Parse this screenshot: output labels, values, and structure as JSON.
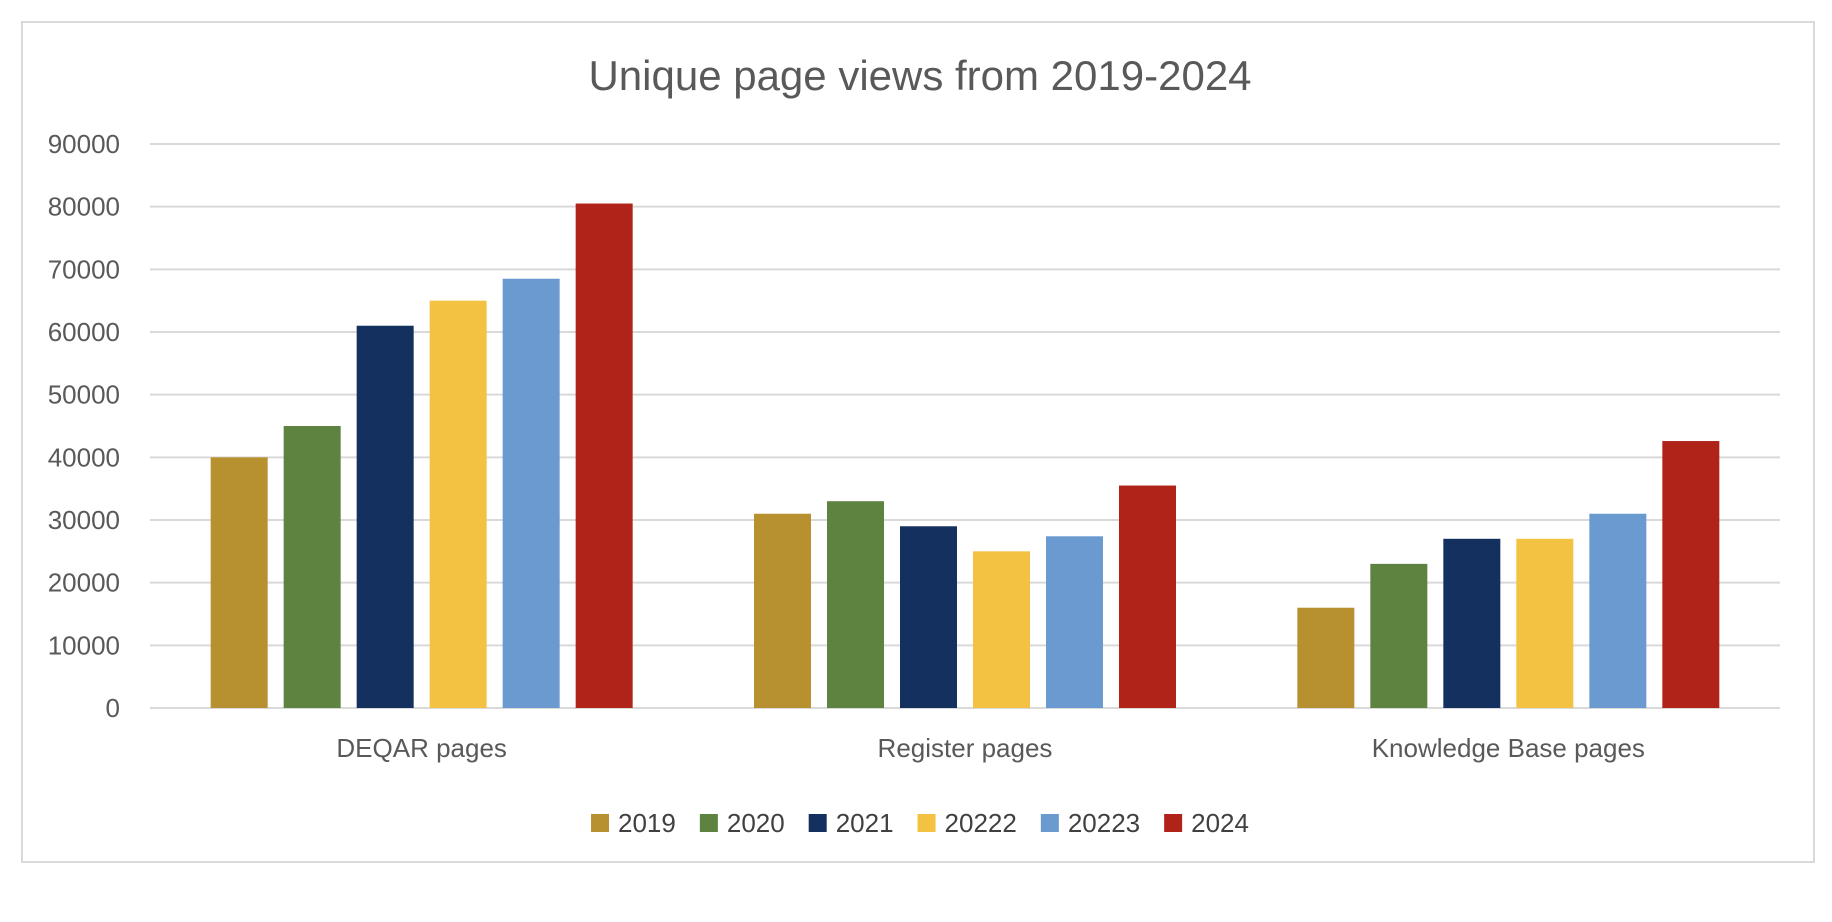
{
  "chart_data": {
    "type": "bar",
    "title": "Unique page views from 2019-2024",
    "xlabel": "",
    "ylabel": "",
    "categories": [
      "DEQAR pages",
      "Register pages",
      "Knowledge Base pages"
    ],
    "ylim": [
      0,
      90000
    ],
    "yticks": [
      0,
      10000,
      20000,
      30000,
      40000,
      50000,
      60000,
      70000,
      80000,
      90000
    ],
    "grid": true,
    "legend_position": "bottom",
    "series": [
      {
        "name": "2019",
        "color": "#b79030",
        "values": [
          40000,
          31000,
          16000
        ]
      },
      {
        "name": "2020",
        "color": "#5e823f",
        "values": [
          45000,
          33000,
          23000
        ]
      },
      {
        "name": "2021",
        "color": "#14305f",
        "values": [
          61000,
          29000,
          27000
        ]
      },
      {
        "name": "20222",
        "color": "#f4c242",
        "values": [
          65000,
          25000,
          27000
        ]
      },
      {
        "name": "20223",
        "color": "#6b9ad1",
        "values": [
          68500,
          27400,
          31000
        ]
      },
      {
        "name": "2024",
        "color": "#b02318",
        "values": [
          80500,
          35500,
          42600
        ]
      }
    ]
  }
}
